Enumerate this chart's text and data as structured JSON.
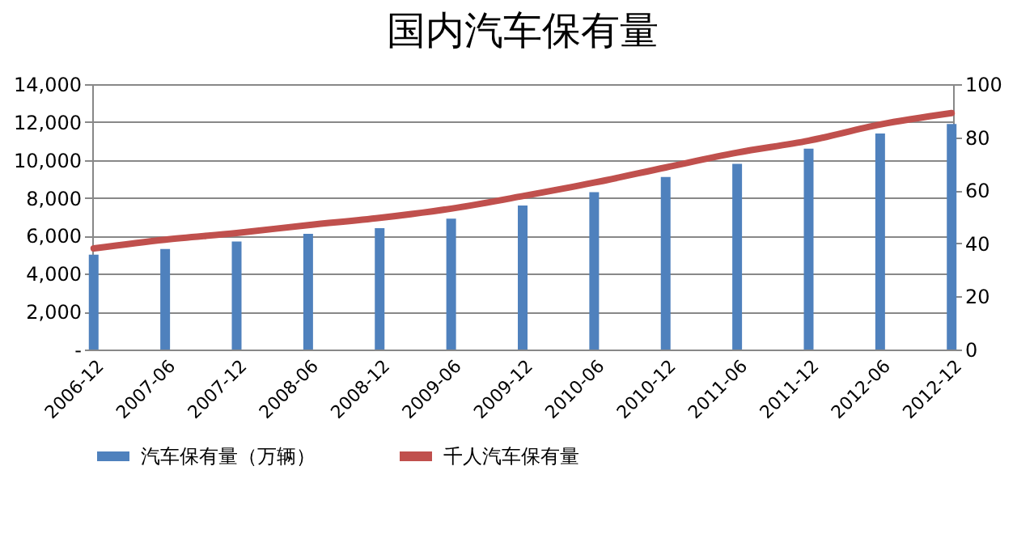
{
  "chart_data": {
    "type": "bar",
    "title": "国内汽车保有量",
    "categories": [
      "2006-12",
      "2007-06",
      "2007-12",
      "2008-06",
      "2008-12",
      "2009-06",
      "2009-12",
      "2010-06",
      "2010-12",
      "2011-06",
      "2011-12",
      "2012-06",
      "2012-12"
    ],
    "series": [
      {
        "name": "汽车保有量（万辆）",
        "color": "#4f81bd",
        "values": [
          5000,
          5300,
          5700,
          6100,
          6400,
          6900,
          7600,
          8300,
          9100,
          9800,
          10600,
          11400,
          11900
        ]
      },
      {
        "name": "千人汽车保有量",
        "type": "line",
        "axis": "y2",
        "color": "#c0504d",
        "values": [
          38.1,
          41.4,
          43.9,
          46.9,
          49.6,
          53.1,
          57.8,
          62.9,
          68.6,
          74.2,
          78.7,
          84.8,
          89.1
        ]
      }
    ],
    "ylim": [
      0,
      14000
    ],
    "yticks": [
      {
        "value": 0,
        "label": "-"
      },
      {
        "value": 2000,
        "label": "2,000"
      },
      {
        "value": 4000,
        "label": "4,000"
      },
      {
        "value": 6000,
        "label": "6,000"
      },
      {
        "value": 8000,
        "label": "8,000"
      },
      {
        "value": 10000,
        "label": "10,000"
      },
      {
        "value": 12000,
        "label": "12,000"
      },
      {
        "value": 14000,
        "label": "14,000"
      }
    ],
    "y2lim": [
      0,
      100
    ],
    "y2ticks": [
      0,
      20,
      40,
      60,
      80,
      100
    ],
    "grid": "y",
    "legend": "bottom",
    "marker": "none",
    "line_style": "solid"
  }
}
